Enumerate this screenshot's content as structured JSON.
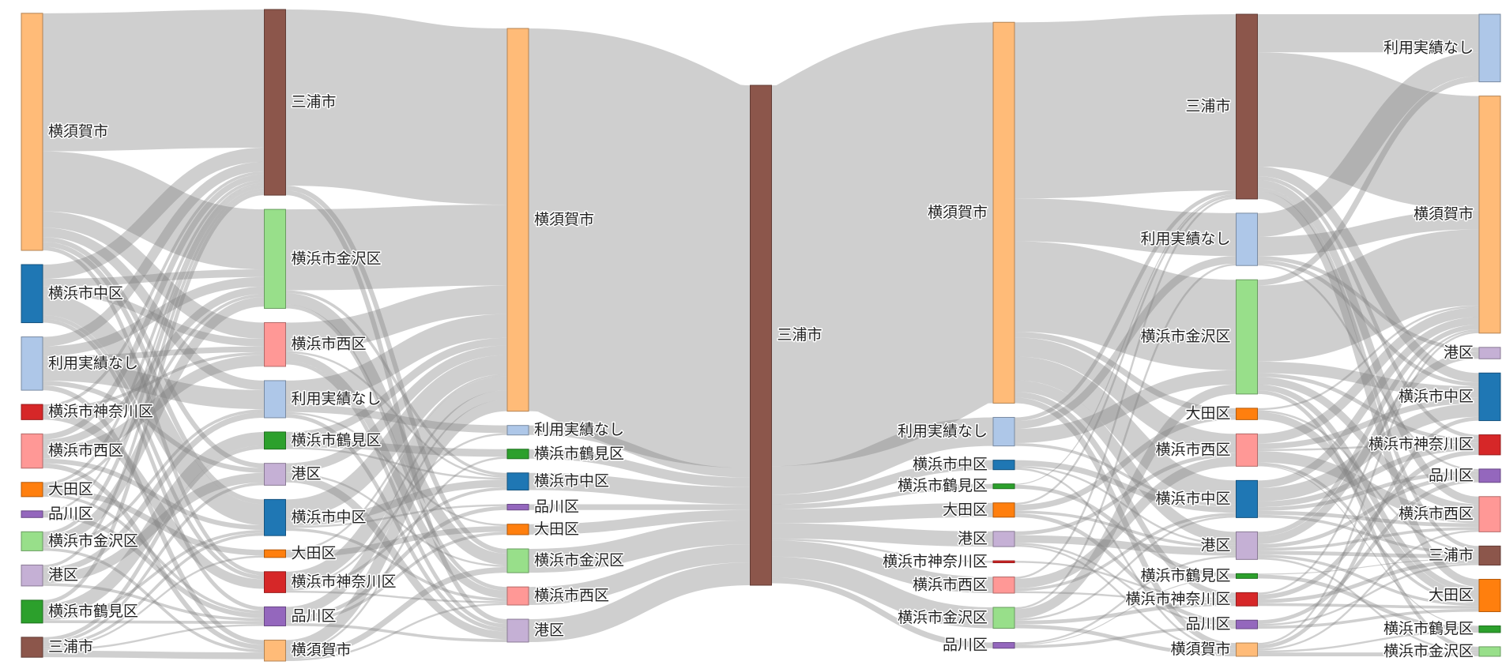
{
  "chart_data": {
    "type": "sankey",
    "colors": {
      "横須賀市": "#ffbb78",
      "三浦市": "#8c564b",
      "横浜市中区": "#1f77b4",
      "利用実績なし": "#aec7e8",
      "横浜市神奈川区": "#d62728",
      "横浜市西区": "#ff9896",
      "大田区": "#ff7f0e",
      "品川区": "#9467bd",
      "横浜市金沢区": "#98df8a",
      "港区": "#c5b0d5",
      "横浜市鶴見区": "#2ca02c"
    },
    "nodes": [
      {
        "name": "横須賀市",
        "column": 0
      },
      {
        "name": "横浜市中区",
        "column": 0
      },
      {
        "name": "利用実績なし",
        "column": 0
      },
      {
        "name": "横浜市神奈川区",
        "column": 0
      },
      {
        "name": "横浜市西区",
        "column": 0
      },
      {
        "name": "大田区",
        "column": 0
      },
      {
        "name": "品川区",
        "column": 0
      },
      {
        "name": "横浜市金沢区",
        "column": 0
      },
      {
        "name": "港区",
        "column": 0
      },
      {
        "name": "横浜市鶴見区",
        "column": 0
      },
      {
        "name": "三浦市",
        "column": 0
      },
      {
        "name": "三浦市",
        "column": 1
      },
      {
        "name": "横浜市金沢区",
        "column": 1
      },
      {
        "name": "横浜市西区",
        "column": 1
      },
      {
        "name": "利用実績なし",
        "column": 1
      },
      {
        "name": "横浜市鶴見区",
        "column": 1
      },
      {
        "name": "港区",
        "column": 1
      },
      {
        "name": "横浜市中区",
        "column": 1
      },
      {
        "name": "大田区",
        "column": 1
      },
      {
        "name": "横浜市神奈川区",
        "column": 1
      },
      {
        "name": "品川区",
        "column": 1
      },
      {
        "name": "横須賀市",
        "column": 1
      },
      {
        "name": "横須賀市",
        "column": 2
      },
      {
        "name": "利用実績なし",
        "column": 2
      },
      {
        "name": "横浜市鶴見区",
        "column": 2
      },
      {
        "name": "横浜市中区",
        "column": 2
      },
      {
        "name": "品川区",
        "column": 2
      },
      {
        "name": "大田区",
        "column": 2
      },
      {
        "name": "横浜市金沢区",
        "column": 2
      },
      {
        "name": "横浜市西区",
        "column": 2
      },
      {
        "name": "港区",
        "column": 2
      },
      {
        "name": "三浦市",
        "column": 3
      },
      {
        "name": "横須賀市",
        "column": 4
      },
      {
        "name": "利用実績なし",
        "column": 4
      },
      {
        "name": "横浜市中区",
        "column": 4
      },
      {
        "name": "横浜市鶴見区",
        "column": 4
      },
      {
        "name": "大田区",
        "column": 4
      },
      {
        "name": "港区",
        "column": 4
      },
      {
        "name": "横浜市神奈川区",
        "column": 4
      },
      {
        "name": "横浜市西区",
        "column": 4
      },
      {
        "name": "横浜市金沢区",
        "column": 4
      },
      {
        "name": "品川区",
        "column": 4
      },
      {
        "name": "三浦市",
        "column": 5
      },
      {
        "name": "利用実績なし",
        "column": 5
      },
      {
        "name": "横浜市金沢区",
        "column": 5
      },
      {
        "name": "大田区",
        "column": 5
      },
      {
        "name": "横浜市西区",
        "column": 5
      },
      {
        "name": "横浜市中区",
        "column": 5
      },
      {
        "name": "港区",
        "column": 5
      },
      {
        "name": "横浜市鶴見区",
        "column": 5
      },
      {
        "name": "横浜市神奈川区",
        "column": 5
      },
      {
        "name": "品川区",
        "column": 5
      },
      {
        "name": "横須賀市",
        "column": 5
      },
      {
        "name": "利用実績なし",
        "column": 6
      },
      {
        "name": "横須賀市",
        "column": 6
      },
      {
        "name": "港区",
        "column": 6
      },
      {
        "name": "横浜市中区",
        "column": 6
      },
      {
        "name": "横浜市神奈川区",
        "column": 6
      },
      {
        "name": "品川区",
        "column": 6
      },
      {
        "name": "横浜市西区",
        "column": 6
      },
      {
        "name": "三浦市",
        "column": 6
      },
      {
        "name": "大田区",
        "column": 6
      },
      {
        "name": "横浜市鶴見区",
        "column": 6
      },
      {
        "name": "横浜市金沢区",
        "column": 6
      }
    ],
    "links": [
      [
        0,
        11,
        145
      ],
      [
        0,
        12,
        63
      ],
      [
        0,
        13,
        17
      ],
      [
        0,
        14,
        10
      ],
      [
        0,
        17,
        5
      ],
      [
        0,
        16,
        5
      ],
      [
        0,
        19,
        4
      ],
      [
        1,
        11,
        15
      ],
      [
        1,
        17,
        22
      ],
      [
        1,
        12,
        8
      ],
      [
        1,
        13,
        8
      ],
      [
        1,
        19,
        4
      ],
      [
        1,
        20,
        4
      ],
      [
        2,
        14,
        20
      ],
      [
        2,
        11,
        10
      ],
      [
        2,
        12,
        10
      ],
      [
        2,
        13,
        6
      ],
      [
        2,
        16,
        5
      ],
      [
        2,
        21,
        5
      ],
      [
        3,
        19,
        10
      ],
      [
        3,
        11,
        3
      ],
      [
        3,
        13,
        3
      ],
      [
        4,
        13,
        12
      ],
      [
        4,
        11,
        6
      ],
      [
        4,
        12,
        8
      ],
      [
        4,
        17,
        5
      ],
      [
        4,
        21,
        5
      ],
      [
        5,
        18,
        6
      ],
      [
        5,
        11,
        3
      ],
      [
        5,
        20,
        3
      ],
      [
        5,
        12,
        3
      ],
      [
        6,
        20,
        5
      ],
      [
        6,
        11,
        2
      ],
      [
        7,
        12,
        10
      ],
      [
        7,
        11,
        4
      ],
      [
        7,
        21,
        3
      ],
      [
        7,
        14,
        3
      ],
      [
        8,
        16,
        10
      ],
      [
        8,
        11,
        3
      ],
      [
        8,
        20,
        3
      ],
      [
        8,
        14,
        6
      ],
      [
        9,
        15,
        14
      ],
      [
        9,
        11,
        4
      ],
      [
        9,
        17,
        3
      ],
      [
        9,
        20,
        3
      ],
      [
        10,
        15,
        4
      ],
      [
        10,
        21,
        7
      ],
      [
        10,
        17,
        3
      ],
      [
        10,
        16,
        3
      ],
      [
        10,
        20,
        2
      ],
      [
        10,
        18,
        2
      ],
      [
        11,
        22,
        185
      ],
      [
        11,
        30,
        5
      ],
      [
        11,
        28,
        5
      ],
      [
        12,
        22,
        85
      ],
      [
        12,
        28,
        12
      ],
      [
        12,
        29,
        4
      ],
      [
        12,
        25,
        3
      ],
      [
        13,
        22,
        30
      ],
      [
        13,
        29,
        8
      ],
      [
        13,
        30,
        4
      ],
      [
        13,
        25,
        2
      ],
      [
        14,
        22,
        25
      ],
      [
        14,
        23,
        8
      ],
      [
        14,
        30,
        4
      ],
      [
        14,
        27,
        2
      ],
      [
        15,
        22,
        8
      ],
      [
        15,
        24,
        8
      ],
      [
        15,
        25,
        2
      ],
      [
        16,
        22,
        10
      ],
      [
        16,
        30,
        8
      ],
      [
        16,
        28,
        2
      ],
      [
        17,
        22,
        20
      ],
      [
        17,
        25,
        8
      ],
      [
        17,
        29,
        3
      ],
      [
        17,
        26,
        2
      ],
      [
        18,
        22,
        2
      ],
      [
        18,
        27,
        6
      ],
      [
        19,
        22,
        15
      ],
      [
        19,
        25,
        3
      ],
      [
        19,
        29,
        2
      ],
      [
        19,
        23,
        2
      ],
      [
        20,
        22,
        10
      ],
      [
        20,
        26,
        4
      ],
      [
        20,
        30,
        3
      ],
      [
        20,
        27,
        3
      ],
      [
        21,
        22,
        12
      ],
      [
        21,
        28,
        6
      ],
      [
        21,
        29,
        2
      ],
      [
        21,
        24,
        2
      ],
      [
        22,
        31,
        402
      ],
      [
        23,
        31,
        10
      ],
      [
        24,
        31,
        10
      ],
      [
        25,
        31,
        18
      ],
      [
        26,
        31,
        6
      ],
      [
        27,
        31,
        11
      ],
      [
        28,
        31,
        25
      ],
      [
        29,
        31,
        19
      ],
      [
        30,
        31,
        24
      ],
      [
        31,
        32,
        400
      ],
      [
        31,
        33,
        30
      ],
      [
        31,
        34,
        10
      ],
      [
        31,
        35,
        5
      ],
      [
        31,
        36,
        15
      ],
      [
        31,
        37,
        16
      ],
      [
        31,
        38,
        2
      ],
      [
        31,
        39,
        17
      ],
      [
        31,
        40,
        22
      ],
      [
        31,
        41,
        6
      ],
      [
        32,
        42,
        185
      ],
      [
        32,
        43,
        45
      ],
      [
        32,
        44,
        95
      ],
      [
        32,
        46,
        20
      ],
      [
        32,
        47,
        25
      ],
      [
        32,
        48,
        12
      ],
      [
        32,
        45,
        6
      ],
      [
        32,
        50,
        6
      ],
      [
        32,
        52,
        6
      ],
      [
        33,
        44,
        15
      ],
      [
        33,
        43,
        8
      ],
      [
        33,
        42,
        4
      ],
      [
        33,
        47,
        3
      ],
      [
        34,
        47,
        6
      ],
      [
        34,
        48,
        2
      ],
      [
        34,
        52,
        2
      ],
      [
        35,
        49,
        4
      ],
      [
        35,
        42,
        1
      ],
      [
        36,
        45,
        6
      ],
      [
        36,
        51,
        4
      ],
      [
        36,
        48,
        3
      ],
      [
        36,
        42,
        2
      ],
      [
        37,
        48,
        8
      ],
      [
        37,
        46,
        4
      ],
      [
        37,
        51,
        2
      ],
      [
        37,
        52,
        2
      ],
      [
        38,
        50,
        2
      ],
      [
        39,
        46,
        10
      ],
      [
        39,
        47,
        3
      ],
      [
        39,
        50,
        2
      ],
      [
        39,
        42,
        2
      ],
      [
        40,
        44,
        10
      ],
      [
        40,
        47,
        2
      ],
      [
        40,
        50,
        4
      ],
      [
        40,
        52,
        4
      ],
      [
        40,
        43,
        2
      ],
      [
        41,
        51,
        3
      ],
      [
        41,
        48,
        2
      ],
      [
        41,
        49,
        1
      ],
      [
        42,
        54,
        120
      ],
      [
        42,
        53,
        40
      ],
      [
        42,
        56,
        10
      ],
      [
        42,
        61,
        8
      ],
      [
        42,
        59,
        8
      ],
      [
        42,
        60,
        4
      ],
      [
        42,
        57,
        4
      ],
      [
        43,
        53,
        25
      ],
      [
        43,
        54,
        20
      ],
      [
        43,
        55,
        4
      ],
      [
        43,
        58,
        2
      ],
      [
        43,
        56,
        4
      ],
      [
        44,
        54,
        80
      ],
      [
        44,
        56,
        12
      ],
      [
        44,
        53,
        6
      ],
      [
        44,
        59,
        8
      ],
      [
        44,
        61,
        6
      ],
      [
        44,
        63,
        4
      ],
      [
        44,
        57,
        4
      ],
      [
        45,
        61,
        8
      ],
      [
        45,
        60,
        2
      ],
      [
        45,
        54,
        2
      ],
      [
        46,
        59,
        12
      ],
      [
        46,
        54,
        10
      ],
      [
        46,
        56,
        6
      ],
      [
        46,
        61,
        3
      ],
      [
        46,
        62,
        1
      ],
      [
        46,
        57,
        2
      ],
      [
        47,
        56,
        14
      ],
      [
        47,
        54,
        8
      ],
      [
        47,
        57,
        6
      ],
      [
        47,
        58,
        4
      ],
      [
        47,
        59,
        4
      ],
      [
        47,
        60,
        3
      ],
      [
        48,
        55,
        8
      ],
      [
        48,
        54,
        5
      ],
      [
        48,
        58,
        4
      ],
      [
        48,
        59,
        3
      ],
      [
        48,
        60,
        4
      ],
      [
        48,
        61,
        3
      ],
      [
        48,
        63,
        2
      ],
      [
        49,
        62,
        4
      ],
      [
        49,
        60,
        1
      ],
      [
        50,
        57,
        5
      ],
      [
        50,
        60,
        4
      ],
      [
        50,
        54,
        2
      ],
      [
        50,
        61,
        3
      ],
      [
        51,
        58,
        4
      ],
      [
        51,
        60,
        2
      ],
      [
        51,
        61,
        3
      ],
      [
        52,
        54,
        2
      ],
      [
        52,
        59,
        2
      ],
      [
        52,
        56,
        4
      ],
      [
        52,
        63,
        4
      ],
      [
        52,
        62,
        2
      ]
    ]
  }
}
